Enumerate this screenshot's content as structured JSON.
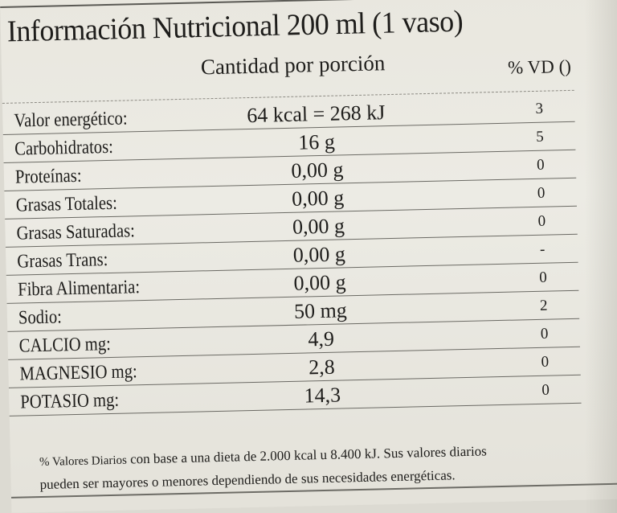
{
  "title": "Información Nutricional 200 ml (1 vaso)",
  "header": {
    "amount_label": "Cantidad por porción",
    "vd_label": "% VD ()"
  },
  "rows": [
    {
      "name": "Valor energético:",
      "amount": "64 kcal = 268 kJ",
      "vd": "3"
    },
    {
      "name": "Carbohidratos:",
      "amount": "16 g",
      "vd": "5"
    },
    {
      "name": "Proteínas:",
      "amount": "0,00 g",
      "vd": "0"
    },
    {
      "name": "Grasas Totales:",
      "amount": "0,00 g",
      "vd": "0"
    },
    {
      "name": "Grasas Saturadas:",
      "amount": "0,00 g",
      "vd": "0"
    },
    {
      "name": "Grasas Trans:",
      "amount": "0,00 g",
      "vd": "-"
    },
    {
      "name": "Fibra Alimentaria:",
      "amount": "0,00 g",
      "vd": "0"
    },
    {
      "name": "Sodio:",
      "amount": "50 mg",
      "vd": "2"
    },
    {
      "name": "CALCIO mg:",
      "amount": "4,9",
      "vd": "0"
    },
    {
      "name": "MAGNESIO mg:",
      "amount": "2,8",
      "vd": "0"
    },
    {
      "name": "POTASIO mg:",
      "amount": "14,3",
      "vd": "0"
    }
  ],
  "footnote": {
    "line1_prefix": "% Valores Diarios",
    "line1_rest": " con base a una dieta de 2.000 kcal u 8.400 kJ. Sus valores diarios",
    "line2": "pueden ser mayores o menores dependiendo de sus necesidades energéticas."
  }
}
